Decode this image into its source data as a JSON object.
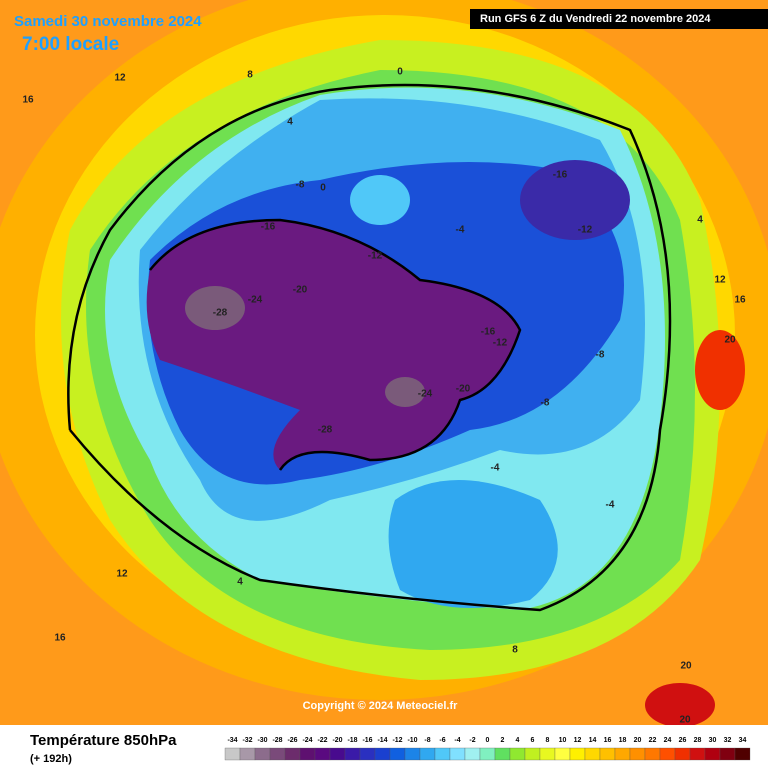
{
  "header": {
    "date": "Samedi 30 novembre 2024",
    "time": "7:00 locale",
    "run": "Run GFS 6 Z du Vendredi 22 novembre 2024"
  },
  "footer": {
    "title": "Température 850hPa",
    "lead": "(+ 192h)",
    "copyright": "Copyright © 2024 Meteociel.fr"
  },
  "legend": {
    "ticks": [
      -34,
      -32,
      -30,
      -28,
      -26,
      -24,
      -22,
      -20,
      -18,
      -16,
      -14,
      -12,
      -10,
      -8,
      -6,
      -4,
      -2,
      0,
      2,
      4,
      6,
      8,
      10,
      12,
      14,
      16,
      18,
      20,
      22,
      24,
      26,
      28,
      30,
      32,
      34
    ],
    "colors": [
      "#c8c8c8",
      "#a898a8",
      "#8c6c8c",
      "#7a4a7a",
      "#6c2c6c",
      "#5e1070",
      "#5a0a80",
      "#480a8e",
      "#3a1aa8",
      "#2a30c0",
      "#1a40d0",
      "#1060e0",
      "#1c84e8",
      "#30a8f0",
      "#50c8f8",
      "#80e0ff",
      "#a0f0f0",
      "#80f0c0",
      "#60e060",
      "#90e830",
      "#c0f020",
      "#e8f820",
      "#ffff40",
      "#fff000",
      "#ffd800",
      "#ffc000",
      "#ffa800",
      "#ff9000",
      "#ff7800",
      "#ff5000",
      "#f03000",
      "#d01010",
      "#b00010",
      "#800010",
      "#500000"
    ]
  },
  "map": {
    "labels": [
      "16",
      "12",
      "8",
      "4",
      "0",
      "-4",
      "-8",
      "-12",
      "-16",
      "-20",
      "-24",
      "-28",
      "-28",
      "-24",
      "-20",
      "-16",
      "-12",
      "-8",
      "-4",
      "0",
      "4",
      "8",
      "12",
      "16",
      "20",
      "20",
      "-16",
      "-12",
      "-8",
      "-4",
      "4",
      "12",
      "16",
      "20"
    ]
  }
}
